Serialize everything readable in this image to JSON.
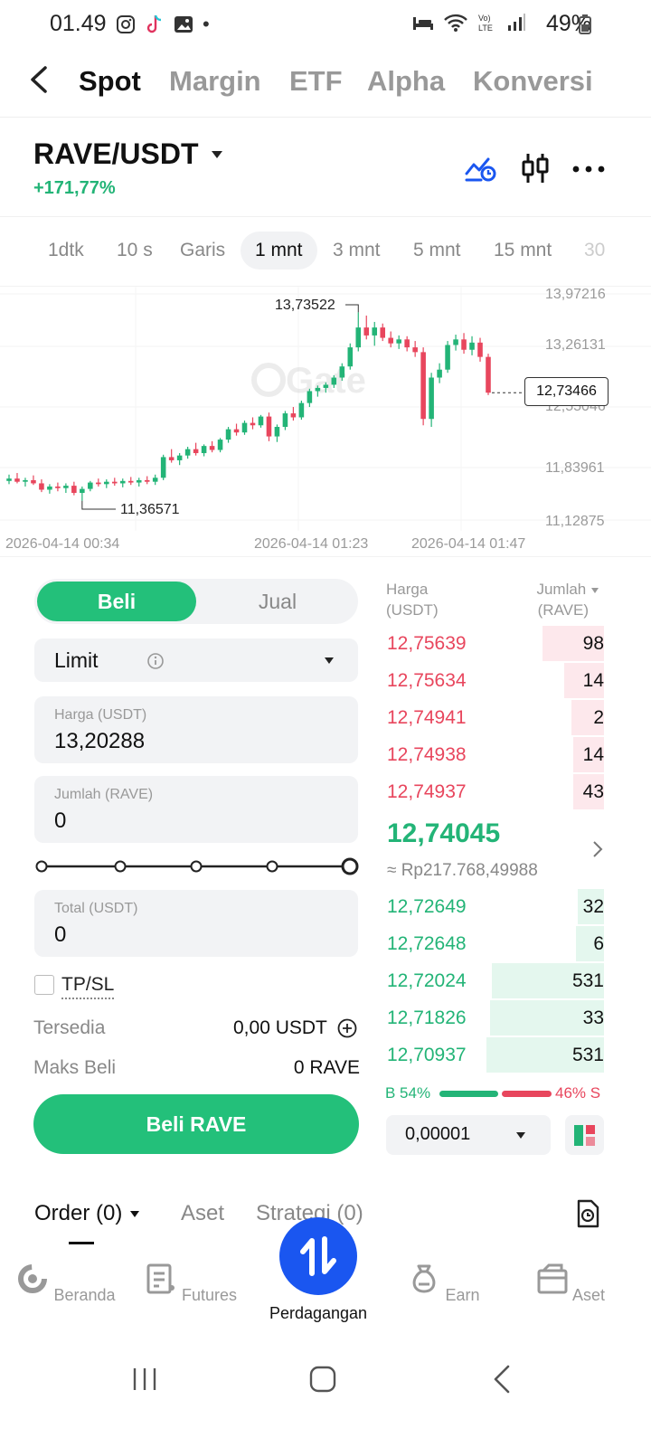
{
  "status": {
    "time": "01.49",
    "dot": "•",
    "battery": "49%"
  },
  "nav": {
    "tabs": [
      "Spot",
      "Margin",
      "ETF",
      "Alpha",
      "Konversi"
    ],
    "active": 0
  },
  "pair": {
    "name": "RAVE/USDT",
    "change": "+171,77%"
  },
  "intervals": [
    "1dtk",
    "10 s",
    "Garis",
    "1 mnt",
    "3 mnt",
    "5 mnt",
    "15 mnt",
    "30"
  ],
  "chart_data": {
    "type": "candlestick",
    "y_axis_labels": [
      "13,97216",
      "13,26131",
      "12,55046",
      "11,83961",
      "11,12875"
    ],
    "high_marker": "13,73522",
    "low_marker": "11,36571",
    "last_price": "12,73466",
    "x_axis_labels": [
      "2026-04-14 00:34",
      "2026-04-14 01:23",
      "2026-04-14 01:47"
    ],
    "watermark": "Gate",
    "ylim": [
      11.12875,
      13.97216
    ],
    "colors": {
      "up": "#23b477",
      "down": "#e8465d"
    },
    "candles": [
      {
        "o": 11.62,
        "h": 11.7,
        "l": 11.58,
        "c": 11.65
      },
      {
        "o": 11.65,
        "h": 11.72,
        "l": 11.59,
        "c": 11.61
      },
      {
        "o": 11.61,
        "h": 11.66,
        "l": 11.55,
        "c": 11.63
      },
      {
        "o": 11.63,
        "h": 11.69,
        "l": 11.57,
        "c": 11.59
      },
      {
        "o": 11.59,
        "h": 11.64,
        "l": 11.48,
        "c": 11.51
      },
      {
        "o": 11.51,
        "h": 11.58,
        "l": 11.46,
        "c": 11.55
      },
      {
        "o": 11.55,
        "h": 11.6,
        "l": 11.49,
        "c": 11.53
      },
      {
        "o": 11.53,
        "h": 11.59,
        "l": 11.47,
        "c": 11.56
      },
      {
        "o": 11.56,
        "h": 11.61,
        "l": 11.44,
        "c": 11.47
      },
      {
        "o": 11.47,
        "h": 11.55,
        "l": 11.37,
        "c": 11.52
      },
      {
        "o": 11.52,
        "h": 11.62,
        "l": 11.49,
        "c": 11.6
      },
      {
        "o": 11.6,
        "h": 11.65,
        "l": 11.55,
        "c": 11.58
      },
      {
        "o": 11.58,
        "h": 11.64,
        "l": 11.53,
        "c": 11.61
      },
      {
        "o": 11.61,
        "h": 11.66,
        "l": 11.56,
        "c": 11.59
      },
      {
        "o": 11.59,
        "h": 11.65,
        "l": 11.54,
        "c": 11.62
      },
      {
        "o": 11.62,
        "h": 11.67,
        "l": 11.57,
        "c": 11.6
      },
      {
        "o": 11.6,
        "h": 11.66,
        "l": 11.55,
        "c": 11.63
      },
      {
        "o": 11.63,
        "h": 11.68,
        "l": 11.58,
        "c": 11.61
      },
      {
        "o": 11.61,
        "h": 11.7,
        "l": 11.57,
        "c": 11.66
      },
      {
        "o": 11.66,
        "h": 11.95,
        "l": 11.63,
        "c": 11.92
      },
      {
        "o": 11.92,
        "h": 12.02,
        "l": 11.85,
        "c": 11.88
      },
      {
        "o": 11.88,
        "h": 11.97,
        "l": 11.82,
        "c": 11.94
      },
      {
        "o": 11.94,
        "h": 12.05,
        "l": 11.9,
        "c": 12.02
      },
      {
        "o": 12.02,
        "h": 12.1,
        "l": 11.94,
        "c": 11.97
      },
      {
        "o": 11.97,
        "h": 12.08,
        "l": 11.93,
        "c": 12.06
      },
      {
        "o": 12.06,
        "h": 12.12,
        "l": 11.98,
        "c": 12.01
      },
      {
        "o": 12.01,
        "h": 12.16,
        "l": 11.98,
        "c": 12.14
      },
      {
        "o": 12.14,
        "h": 12.3,
        "l": 12.1,
        "c": 12.27
      },
      {
        "o": 12.27,
        "h": 12.34,
        "l": 12.19,
        "c": 12.23
      },
      {
        "o": 12.23,
        "h": 12.38,
        "l": 12.2,
        "c": 12.35
      },
      {
        "o": 12.35,
        "h": 12.42,
        "l": 12.27,
        "c": 12.32
      },
      {
        "o": 12.32,
        "h": 12.45,
        "l": 12.29,
        "c": 12.43
      },
      {
        "o": 12.43,
        "h": 12.48,
        "l": 12.12,
        "c": 12.18
      },
      {
        "o": 12.18,
        "h": 12.33,
        "l": 12.11,
        "c": 12.3
      },
      {
        "o": 12.3,
        "h": 12.5,
        "l": 12.26,
        "c": 12.47
      },
      {
        "o": 12.47,
        "h": 12.55,
        "l": 12.38,
        "c": 12.42
      },
      {
        "o": 12.42,
        "h": 12.63,
        "l": 12.39,
        "c": 12.6
      },
      {
        "o": 12.6,
        "h": 12.78,
        "l": 12.55,
        "c": 12.75
      },
      {
        "o": 12.75,
        "h": 12.82,
        "l": 12.68,
        "c": 12.79
      },
      {
        "o": 12.79,
        "h": 12.86,
        "l": 12.73,
        "c": 12.83
      },
      {
        "o": 12.83,
        "h": 12.95,
        "l": 12.79,
        "c": 12.92
      },
      {
        "o": 12.92,
        "h": 13.1,
        "l": 12.88,
        "c": 13.06
      },
      {
        "o": 13.06,
        "h": 13.35,
        "l": 13.02,
        "c": 13.3
      },
      {
        "o": 13.3,
        "h": 13.74,
        "l": 13.25,
        "c": 13.55
      },
      {
        "o": 13.55,
        "h": 13.7,
        "l": 13.4,
        "c": 13.45
      },
      {
        "o": 13.45,
        "h": 13.62,
        "l": 13.32,
        "c": 13.55
      },
      {
        "o": 13.55,
        "h": 13.6,
        "l": 13.38,
        "c": 13.42
      },
      {
        "o": 13.42,
        "h": 13.5,
        "l": 13.3,
        "c": 13.35
      },
      {
        "o": 13.35,
        "h": 13.45,
        "l": 13.28,
        "c": 13.4
      },
      {
        "o": 13.4,
        "h": 13.44,
        "l": 13.25,
        "c": 13.3
      },
      {
        "o": 13.3,
        "h": 13.38,
        "l": 13.18,
        "c": 13.24
      },
      {
        "o": 13.24,
        "h": 13.3,
        "l": 12.32,
        "c": 12.4
      },
      {
        "o": 12.4,
        "h": 12.98,
        "l": 12.3,
        "c": 12.92
      },
      {
        "o": 12.92,
        "h": 13.1,
        "l": 12.85,
        "c": 13.02
      },
      {
        "o": 13.02,
        "h": 13.38,
        "l": 12.98,
        "c": 13.33
      },
      {
        "o": 13.33,
        "h": 13.46,
        "l": 13.26,
        "c": 13.4
      },
      {
        "o": 13.4,
        "h": 13.48,
        "l": 13.22,
        "c": 13.27
      },
      {
        "o": 13.27,
        "h": 13.44,
        "l": 13.2,
        "c": 13.36
      },
      {
        "o": 13.36,
        "h": 13.42,
        "l": 13.12,
        "c": 13.18
      },
      {
        "o": 13.18,
        "h": 13.22,
        "l": 12.7,
        "c": 12.73
      }
    ]
  },
  "order_form": {
    "buy_label": "Beli",
    "sell_label": "Jual",
    "order_type": "Limit",
    "price_label": "Harga (USDT)",
    "price_value": "13,20288",
    "amount_label": "Jumlah (RAVE)",
    "amount_value": "0",
    "total_label": "Total (USDT)",
    "total_value": "0",
    "tpsl_label": "TP/SL",
    "available_label": "Tersedia",
    "available_value": "0,00 USDT",
    "max_buy_label": "Maks Beli",
    "max_buy_value": "0 RAVE",
    "submit_label": "Beli RAVE"
  },
  "orderbook": {
    "price_header": "Harga",
    "price_unit": "(USDT)",
    "qty_header": "Jumlah",
    "qty_unit": "(RAVE)",
    "asks": [
      {
        "price": "12,75639",
        "qty": "98",
        "depth": 0.52
      },
      {
        "price": "12,75634",
        "qty": "14",
        "depth": 0.34
      },
      {
        "price": "12,74941",
        "qty": "2",
        "depth": 0.28
      },
      {
        "price": "12,74938",
        "qty": "14",
        "depth": 0.26
      },
      {
        "price": "12,74937",
        "qty": "43",
        "depth": 0.26
      }
    ],
    "mid_price": "12,74045",
    "mid_fiat": "≈ Rp217.768,49988",
    "bids": [
      {
        "price": "12,72649",
        "qty": "32",
        "depth": 0.22
      },
      {
        "price": "12,72648",
        "qty": "6",
        "depth": 0.24
      },
      {
        "price": "12,72024",
        "qty": "531",
        "depth": 0.95
      },
      {
        "price": "12,71826",
        "qty": "33",
        "depth": 0.97
      },
      {
        "price": "12,70937",
        "qty": "531",
        "depth": 1.0
      }
    ],
    "buy_ratio_label": "B 54%",
    "sell_ratio_label": "46% S",
    "buy_ratio": 0.54,
    "precision": "0,00001"
  },
  "orders_tabs": [
    "Order (0)",
    "Aset",
    "Strategi (0)"
  ],
  "bottom_nav": [
    "Beranda",
    "Futures",
    "Perdagangan",
    "Earn",
    "Aset"
  ],
  "colors": {
    "green": "#23c07a",
    "red": "#e8465d",
    "blue": "#1a56f0"
  }
}
